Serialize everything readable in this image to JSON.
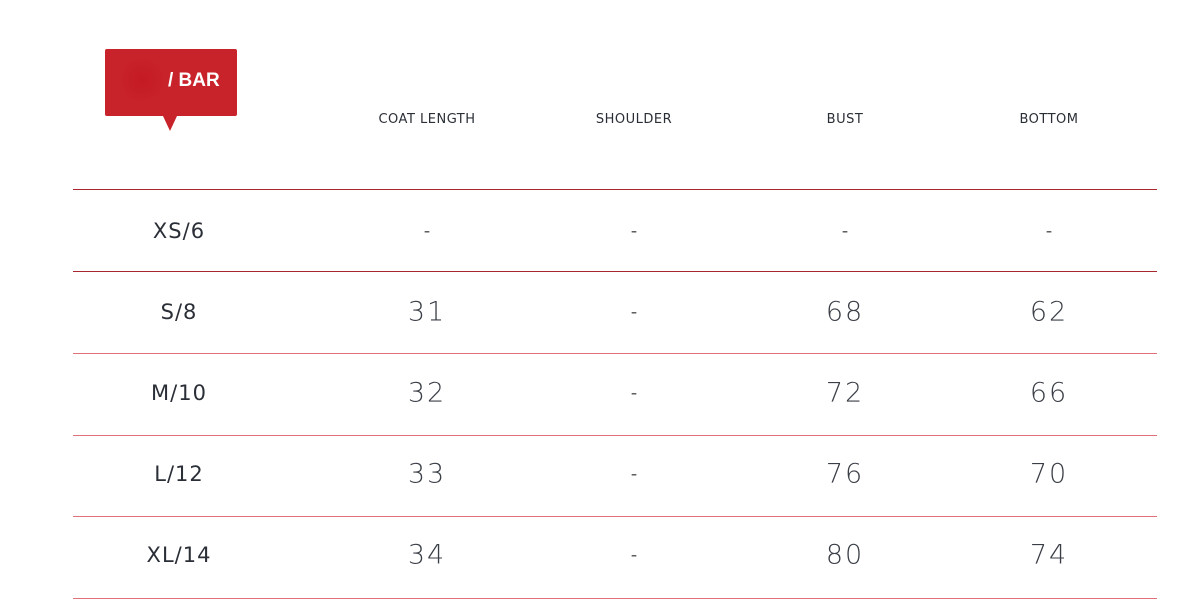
{
  "badge": {
    "label": "/ BAR",
    "color": "#c8222b"
  },
  "columns": [
    "COAT LENGTH",
    "SHOULDER",
    "BUST",
    "BOTTOM"
  ],
  "rows": [
    {
      "size": "XS/6",
      "values": [
        "-",
        "-",
        "-",
        "-"
      ]
    },
    {
      "size": "S/8",
      "values": [
        "31",
        "-",
        "68",
        "62"
      ]
    },
    {
      "size": "M/10",
      "values": [
        "32",
        "-",
        "72",
        "66"
      ]
    },
    {
      "size": "L/12",
      "values": [
        "33",
        "-",
        "76",
        "70"
      ]
    },
    {
      "size": "XL/14",
      "values": [
        "34",
        "-",
        "80",
        "74"
      ]
    }
  ]
}
